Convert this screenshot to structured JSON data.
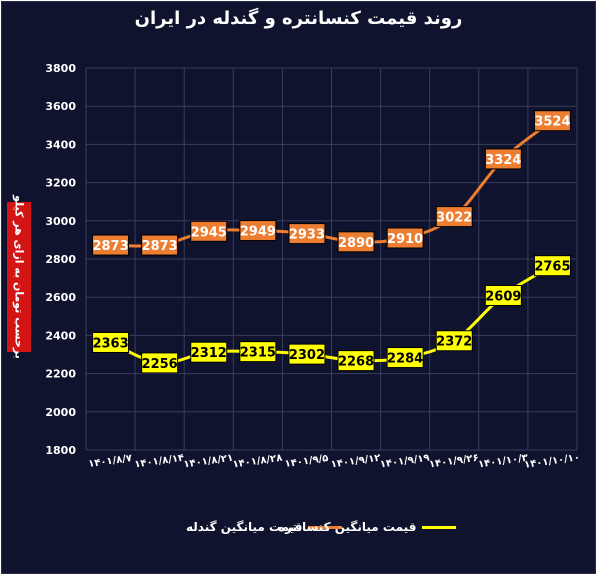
{
  "chart_data": {
    "type": "line",
    "title": "روند قیمت کنسانتره و گندله در ایران",
    "ylabel": "برحسب تومان به ازای هر کیلو",
    "xlabel": "",
    "ylim": [
      1800,
      3800
    ],
    "yticks": [
      1800,
      2000,
      2200,
      2400,
      2600,
      2800,
      3000,
      3200,
      3400,
      3600,
      3800
    ],
    "grid": true,
    "legend_position": "bottom",
    "categories": [
      "۱۴۰۱/۸/۷",
      "۱۴۰۱/۸/۱۴",
      "۱۴۰۱/۸/۲۱",
      "۱۴۰۱/۸/۲۸",
      "۱۴۰۱/۹/۵",
      "۱۴۰۱/۹/۱۲",
      "۱۴۰۱/۹/۱۹",
      "۱۴۰۱/۹/۲۶",
      "۱۴۰۱/۱۰/۳",
      "۱۴۰۱/۱۰/۱۰"
    ],
    "series": [
      {
        "name": "قیمت میانگین گندله",
        "color": "#ed7d31",
        "label_bg": "#ed7d31",
        "label_color": "#ffffff",
        "values": [
          2873,
          2873,
          2945,
          2949,
          2933,
          2890,
          2910,
          3022,
          3324,
          3524
        ]
      },
      {
        "name": "قیمت میانگین کنسانتره",
        "color": "#ffff00",
        "label_bg": "#ffff00",
        "label_color": "#000000",
        "values": [
          2363,
          2256,
          2312,
          2315,
          2302,
          2268,
          2284,
          2372,
          2609,
          2765
        ]
      }
    ]
  },
  "colors": {
    "background": "#10132e",
    "grid": "#3a3d5c",
    "axis_text": "#ffffff",
    "ylabel_box": "#d21414"
  }
}
